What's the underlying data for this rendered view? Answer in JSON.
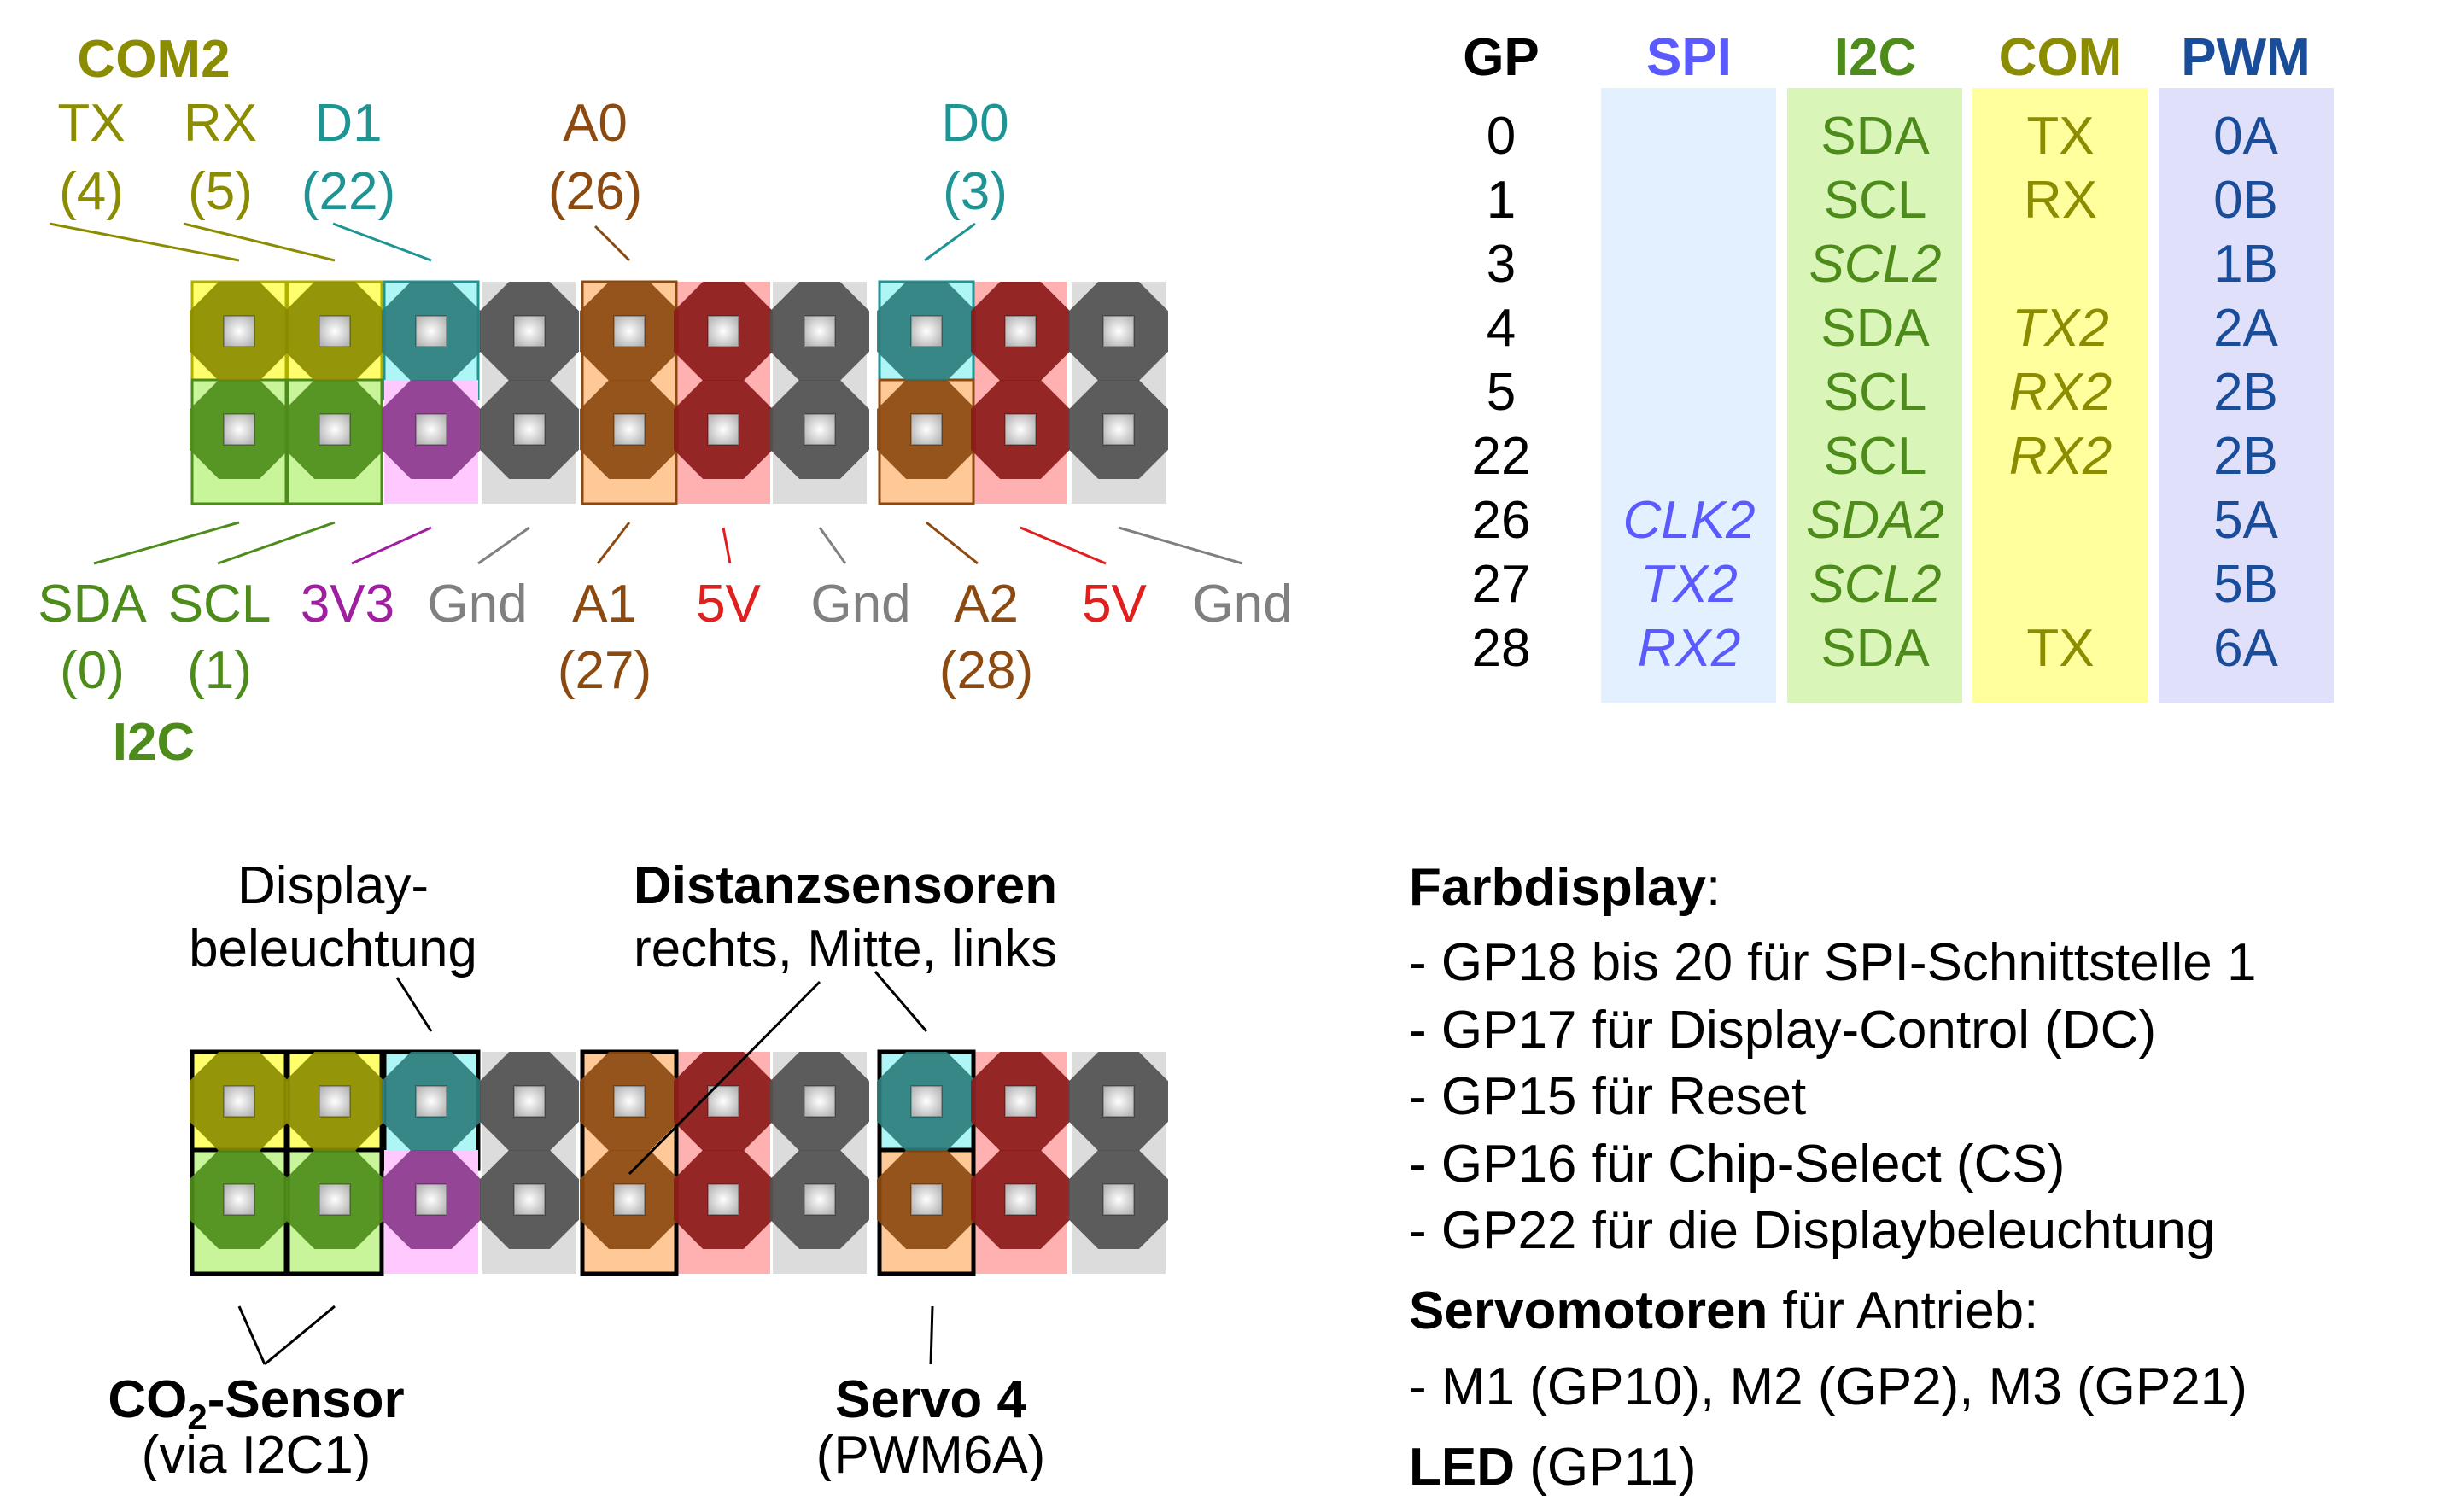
{
  "colors": {
    "com": "#8c8c00",
    "i2c": "#4d8c1a",
    "d_teal": "#1f9494",
    "analog": "#8c4a10",
    "v5": "#e01f1f",
    "gnd": "#808080",
    "v3": "#a01fa0",
    "spi": "#5a5aff",
    "pwm": "#1a4d99"
  },
  "top_header": {
    "com2": "COM2",
    "i2c": "I2C"
  },
  "top_labels": {
    "tx": [
      "TX",
      "(4)"
    ],
    "rx": [
      "RX",
      "(5)"
    ],
    "d1": [
      "D1",
      "(22)"
    ],
    "a0": [
      "A0",
      "(26)"
    ],
    "d0": [
      "D0",
      "(3)"
    ],
    "sda": [
      "SDA",
      "(0)"
    ],
    "scl": [
      "SCL",
      "(1)"
    ],
    "v33": "3V3",
    "gnd": "Gnd",
    "a1": [
      "A1",
      "(27)"
    ],
    "v5": "5V",
    "a2": [
      "A2",
      "(28)"
    ]
  },
  "table": {
    "headers": {
      "gp": "GP",
      "spi": "SPI",
      "i2c": "I2C",
      "com": "COM",
      "pwm": "PWM"
    },
    "rows": [
      {
        "gp": "0",
        "spi": "",
        "i2c": "SDA",
        "com": "TX",
        "pwm": "0A",
        "i2c_it": false,
        "com_it": false,
        "spi_it": false
      },
      {
        "gp": "1",
        "spi": "",
        "i2c": "SCL",
        "com": "RX",
        "pwm": "0B",
        "i2c_it": false,
        "com_it": false,
        "spi_it": false
      },
      {
        "gp": "3",
        "spi": "",
        "i2c": "SCL2",
        "com": "",
        "pwm": "1B",
        "i2c_it": true,
        "com_it": false,
        "spi_it": false
      },
      {
        "gp": "4",
        "spi": "",
        "i2c": "SDA",
        "com": "TX2",
        "pwm": "2A",
        "i2c_it": false,
        "com_it": true,
        "spi_it": false
      },
      {
        "gp": "5",
        "spi": "",
        "i2c": "SCL",
        "com": "RX2",
        "pwm": "2B",
        "i2c_it": false,
        "com_it": true,
        "spi_it": false
      },
      {
        "gp": "22",
        "spi": "",
        "i2c": "SCL",
        "com": "RX2",
        "pwm": "2B",
        "i2c_it": false,
        "com_it": true,
        "spi_it": false
      },
      {
        "gp": "26",
        "spi": "CLK2",
        "i2c": "SDA2",
        "com": "",
        "pwm": "5A",
        "i2c_it": true,
        "com_it": false,
        "spi_it": true
      },
      {
        "gp": "27",
        "spi": "TX2",
        "i2c": "SCL2",
        "com": "",
        "pwm": "5B",
        "i2c_it": true,
        "com_it": false,
        "spi_it": true
      },
      {
        "gp": "28",
        "spi": "RX2",
        "i2c": "SDA",
        "com": "TX",
        "pwm": "6A",
        "i2c_it": false,
        "com_it": false,
        "spi_it": true
      }
    ]
  },
  "bottom_labels": {
    "display_backlight": [
      "Display-",
      "beleuchtung"
    ],
    "distance_title": "Distanzsensoren",
    "distance_sub": "rechts, Mitte, links",
    "co2_main": "CO",
    "co2_sub": "2",
    "co2_rest": "-Sensor",
    "co2_via": "(via I2C1)",
    "servo_title": "Servo 4",
    "servo_sub": "(PWM6A)"
  },
  "notes": {
    "farb_title": "Farbdisplay",
    "farb_colon": ":",
    "farb_items": [
      "- GP18 bis 20 für SPI-Schnittstelle 1",
      "- GP17 für Display-Control (DC)",
      "- GP15 für Reset",
      "- GP16 für Chip-Select (CS)",
      "- GP22 für die Displaybeleuchtung"
    ],
    "servo_title": "Servomotoren",
    "servo_rest": " für Antrieb:",
    "servo_item": "- M1 (GP10), M2 (GP2), M3 (GP21)",
    "led_title": "LED",
    "led_rest": " (GP11)"
  }
}
